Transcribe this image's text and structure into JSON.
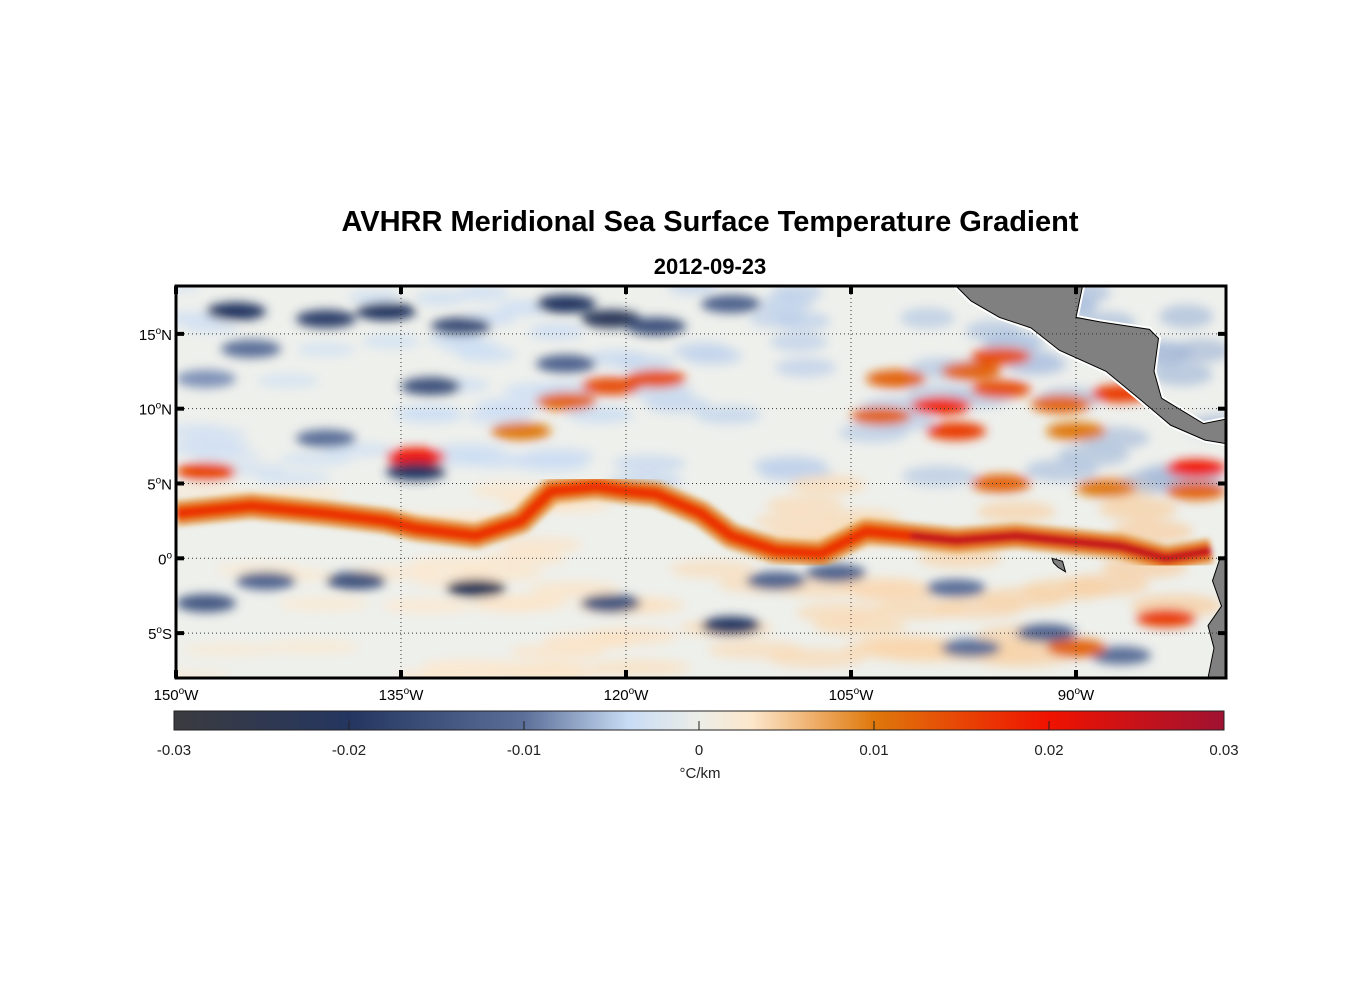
{
  "title": "AVHRR Meridional Sea Surface Temperature Gradient",
  "subtitle": "2012-09-23",
  "map": {
    "lon_range": [
      -150,
      -80
    ],
    "lat_range": [
      -8,
      18.2
    ],
    "lon_ticks": [
      {
        "value": -150,
        "num": "150",
        "hemi": "W"
      },
      {
        "value": -135,
        "num": "135",
        "hemi": "W"
      },
      {
        "value": -120,
        "num": "120",
        "hemi": "W"
      },
      {
        "value": -105,
        "num": "105",
        "hemi": "W"
      },
      {
        "value": -90,
        "num": "90",
        "hemi": "W"
      }
    ],
    "lat_ticks": [
      {
        "value": 15,
        "num": "15",
        "hemi": "N"
      },
      {
        "value": 10,
        "num": "10",
        "hemi": "N"
      },
      {
        "value": 5,
        "num": "5",
        "hemi": "N"
      },
      {
        "value": 0,
        "num": "0",
        "hemi": ""
      },
      {
        "value": -5,
        "num": "5",
        "hemi": "S"
      }
    ],
    "grid": "dotted",
    "land_color": "#808080",
    "front": [
      [
        -150,
        3
      ],
      [
        -145,
        3.5
      ],
      [
        -140,
        3
      ],
      [
        -136,
        2.5
      ],
      [
        -134,
        2
      ],
      [
        -130,
        1.5
      ],
      [
        -127,
        2.5
      ],
      [
        -125,
        4.5
      ],
      [
        -122,
        4.8
      ],
      [
        -120,
        4.5
      ],
      [
        -118,
        4.3
      ],
      [
        -115,
        3
      ],
      [
        -113,
        1.5
      ],
      [
        -110,
        0.5
      ],
      [
        -107,
        0.3
      ],
      [
        -104,
        1.8
      ],
      [
        -101,
        1.5
      ],
      [
        -98,
        1.2
      ],
      [
        -94,
        1.5
      ],
      [
        -91,
        1.2
      ],
      [
        -87,
        0.8
      ],
      [
        -84,
        0
      ],
      [
        -81,
        0.5
      ]
    ],
    "blobs": [
      [
        -146,
        16.5,
        -0.02
      ],
      [
        -140,
        16,
        -0.018
      ],
      [
        -136,
        16.5,
        -0.02
      ],
      [
        -131,
        15.5,
        -0.016
      ],
      [
        -124,
        17,
        -0.02
      ],
      [
        -121,
        16,
        -0.022
      ],
      [
        -118,
        15.5,
        -0.015
      ],
      [
        -113,
        17,
        -0.012
      ],
      [
        -145,
        14,
        -0.01
      ],
      [
        -133,
        11.5,
        -0.015
      ],
      [
        -124,
        13,
        -0.012
      ],
      [
        -140,
        8,
        -0.01
      ],
      [
        -148,
        12,
        -0.008
      ],
      [
        -144,
        -1.5,
        -0.012
      ],
      [
        -138,
        -1.5,
        -0.015
      ],
      [
        -130,
        -2,
        -0.022
      ],
      [
        -121,
        -3,
        -0.015
      ],
      [
        -113,
        -4.5,
        -0.02
      ],
      [
        -106,
        -1,
        -0.012
      ],
      [
        -98,
        -2,
        -0.01
      ],
      [
        -92,
        -5,
        -0.012
      ],
      [
        -87,
        -6.5,
        -0.01
      ],
      [
        -97,
        -6,
        -0.01
      ],
      [
        -148,
        -3,
        -0.014
      ],
      [
        -110,
        -1.5,
        -0.012
      ],
      [
        -134,
        6.8,
        0.02
      ],
      [
        -134,
        5.8,
        -0.02
      ],
      [
        -148,
        5.8,
        0.015
      ],
      [
        -121,
        11.5,
        0.014
      ],
      [
        -124,
        10.5,
        0.012
      ],
      [
        -127,
        8.5,
        0.01
      ],
      [
        -118,
        12,
        0.014
      ],
      [
        -102,
        12,
        0.012
      ],
      [
        -97,
        12.5,
        0.012
      ],
      [
        -95,
        13.5,
        0.014
      ],
      [
        -103,
        9.5,
        0.012
      ],
      [
        -99,
        10.2,
        0.018
      ],
      [
        -95,
        11.3,
        0.014
      ],
      [
        -91,
        10.3,
        0.012
      ],
      [
        -87,
        11,
        0.016
      ],
      [
        -98,
        8.5,
        0.016
      ],
      [
        -90,
        8.5,
        0.01
      ],
      [
        -82,
        6,
        0.02
      ],
      [
        -95,
        5,
        0.012
      ],
      [
        -88,
        4.7,
        0.01
      ],
      [
        -82,
        4.5,
        0.012
      ],
      [
        -84,
        -4,
        0.016
      ],
      [
        -90,
        -6,
        0.012
      ]
    ]
  },
  "colorbar": {
    "min": -0.03,
    "max": 0.03,
    "ticks": [
      "-0.03",
      "-0.02",
      "-0.01",
      "0",
      "0.01",
      "0.02",
      "0.03"
    ],
    "label": "°C/km",
    "stops": [
      {
        "v": -0.03,
        "c": "#3b3b3f"
      },
      {
        "v": -0.02,
        "c": "#243660"
      },
      {
        "v": -0.01,
        "c": "#5b6f99"
      },
      {
        "v": -0.004,
        "c": "#c9dcf5"
      },
      {
        "v": 0,
        "c": "#eceee8"
      },
      {
        "v": 0.003,
        "c": "#fde7cc"
      },
      {
        "v": 0.01,
        "c": "#df780b"
      },
      {
        "v": 0.02,
        "c": "#f01200"
      },
      {
        "v": 0.03,
        "c": "#a01232"
      }
    ]
  }
}
